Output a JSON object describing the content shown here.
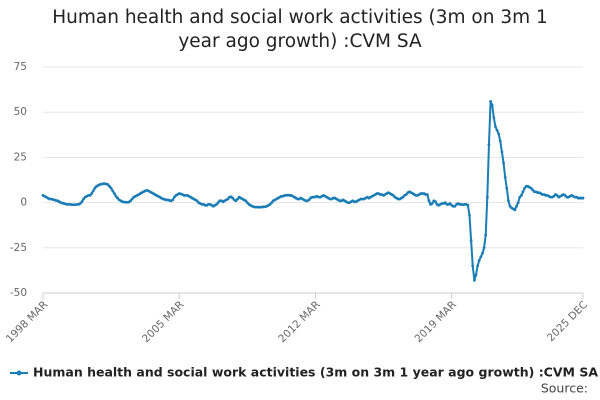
{
  "chart_data": {
    "type": "line",
    "title": "Human health and social work activities (3m on 3m 1 year ago growth) :CVM SA",
    "source": "Source:",
    "categories": [
      "1998 MAR",
      null,
      null,
      null,
      null,
      null,
      null,
      null,
      null,
      null,
      null,
      null,
      null,
      null,
      null,
      null,
      null,
      null,
      null,
      null,
      null,
      null,
      null,
      null,
      null,
      null,
      null,
      null,
      null,
      null,
      null,
      null,
      null,
      null,
      null,
      null,
      null,
      null,
      null,
      null,
      null,
      null,
      null,
      null,
      null,
      null,
      null,
      null,
      null,
      null,
      null,
      null,
      null,
      null,
      null,
      null,
      null,
      null,
      null,
      null,
      null,
      null,
      null,
      null,
      null,
      null,
      null,
      null,
      null,
      null,
      null,
      null,
      null,
      null,
      null,
      null,
      null,
      null,
      null,
      null,
      null,
      null,
      null,
      null,
      "2005 MAR",
      null,
      null,
      null,
      null,
      null,
      null,
      null,
      null,
      null,
      null,
      null,
      null,
      null,
      null,
      null,
      null,
      null,
      null,
      null,
      null,
      null,
      null,
      null,
      null,
      null,
      null,
      null,
      null,
      null,
      null,
      null,
      null,
      null,
      null,
      null,
      null,
      null,
      null,
      null,
      null,
      null,
      null,
      null,
      null,
      null,
      null,
      null,
      null,
      null,
      null,
      null,
      null,
      null,
      null,
      null,
      null,
      null,
      null,
      null,
      null,
      null,
      null,
      null,
      null,
      null,
      null,
      null,
      null,
      null,
      null,
      null,
      null,
      null,
      null,
      null,
      null,
      null,
      null,
      null,
      null,
      null,
      null,
      null,
      "2012 MAR",
      null,
      null,
      null,
      null,
      null,
      null,
      null,
      null,
      null,
      null,
      null,
      null,
      null,
      null,
      null,
      null,
      null,
      null,
      null,
      null,
      null,
      null,
      null,
      null,
      null,
      null,
      null,
      null,
      null,
      null,
      null,
      null,
      null,
      null,
      null,
      null,
      null,
      null,
      null,
      null,
      null,
      null,
      null,
      null,
      null,
      null,
      null,
      null,
      null,
      null,
      null,
      null,
      null,
      null,
      null,
      null,
      null,
      null,
      null,
      null,
      null,
      null,
      null,
      null,
      null,
      null,
      null,
      null,
      null,
      null,
      null,
      null,
      null,
      null,
      null,
      null,
      null,
      null,
      null,
      null,
      null,
      null,
      null,
      "2019 MAR",
      null,
      null,
      null,
      null,
      null,
      null,
      null,
      null,
      null,
      null,
      null,
      null,
      null,
      null,
      null,
      null,
      null,
      null,
      null,
      null,
      null,
      null,
      null,
      null,
      null,
      null,
      null,
      null,
      null,
      null,
      null,
      null,
      null,
      null,
      null,
      null,
      null,
      null,
      null,
      null,
      null,
      null,
      null,
      null,
      null,
      null,
      null,
      null,
      null,
      null,
      null,
      null,
      null,
      null,
      null,
      null,
      null,
      null,
      null,
      null,
      null,
      null,
      null,
      null,
      null,
      null,
      null,
      null,
      null,
      null,
      null,
      null,
      null,
      null,
      null,
      null,
      null,
      null,
      null,
      null,
      "2025 DEC"
    ],
    "series": [
      {
        "name": "Human health and social work activities (3m on 3m 1 year ago growth) :CVM SA",
        "color": "#1a7db5",
        "values": [
          4,
          3.5,
          3,
          2.5,
          2,
          2,
          1.8,
          1.5,
          1.2,
          1,
          0.5,
          0,
          -0.3,
          -0.5,
          -0.8,
          -1,
          -1,
          -1,
          -1.2,
          -1.2,
          -1.2,
          -1,
          -1,
          -0.5,
          0.5,
          2,
          3,
          3.5,
          4,
          4,
          5,
          6.5,
          8,
          9,
          9.5,
          10,
          10.2,
          10.4,
          10.5,
          10.3,
          10,
          9,
          8,
          6.5,
          5,
          3.5,
          2.5,
          1.5,
          1,
          0.5,
          0.3,
          0.2,
          0.2,
          0.3,
          1,
          2,
          3,
          3.5,
          4,
          4.5,
          5,
          5.5,
          6,
          6.5,
          6.8,
          6.5,
          6,
          5.5,
          5,
          4.5,
          4,
          3.5,
          3,
          2.5,
          2,
          1.8,
          1.5,
          1.5,
          1.2,
          1,
          1.5,
          3,
          4,
          4.5,
          5,
          4.8,
          4.5,
          4,
          4,
          4,
          3.5,
          3,
          2.5,
          2,
          1.5,
          1,
          0,
          -0.5,
          -1,
          -1,
          -1.5,
          -1.5,
          -1,
          -1,
          -1.5,
          -2,
          -1.5,
          -1,
          0,
          1,
          1,
          0.5,
          1,
          1.5,
          2,
          3,
          3.2,
          2.5,
          1.5,
          1,
          2,
          3,
          2.5,
          2,
          1.5,
          1,
          0,
          -1,
          -1.5,
          -2,
          -2.3,
          -2.5,
          -2.5,
          -2.5,
          -2.5,
          -2.5,
          -2.3,
          -2.3,
          -2,
          -1.5,
          -1,
          0,
          1,
          1.5,
          2,
          2.5,
          3,
          3.5,
          3.5,
          4,
          4,
          4.2,
          4,
          4,
          3.5,
          3,
          2.5,
          2,
          2,
          2.5,
          2,
          1.5,
          1,
          1,
          1.5,
          2.5,
          3,
          3,
          3.2,
          3.5,
          3,
          3,
          3.5,
          4,
          3.5,
          3,
          2.5,
          2,
          2,
          2.5,
          2.5,
          2,
          1.5,
          1,
          1,
          1.5,
          1,
          0.5,
          0,
          0,
          0.5,
          1,
          0.5,
          0.5,
          1,
          1.5,
          2,
          2,
          2,
          2.5,
          3,
          2.5,
          3,
          3.5,
          4,
          4.5,
          5,
          5,
          4.5,
          4.5,
          4,
          4.5,
          5,
          5.5,
          5,
          4.5,
          4,
          3,
          2.5,
          2,
          2,
          2.5,
          3,
          4,
          4.5,
          5.5,
          6,
          5.5,
          5,
          4.5,
          4,
          4,
          4.5,
          5,
          5,
          5,
          4.5,
          4.5,
          1,
          -1,
          -0.5,
          1,
          0.5,
          -1,
          -1.5,
          -1,
          -0.5,
          -0.5,
          0,
          -1,
          -1,
          -0.5,
          -1.5,
          -2,
          -2,
          -1,
          -0.5,
          -1,
          -1,
          -1.2,
          -1,
          -1,
          -1.5,
          -7,
          -21,
          -35,
          -43,
          -40,
          -35,
          -32,
          -30,
          -28,
          -25,
          -18,
          3,
          32,
          56,
          54,
          47,
          42,
          40,
          38,
          34,
          28,
          22,
          14,
          8,
          1,
          -2,
          -3,
          -3.5,
          -4,
          -2,
          0,
          3,
          4,
          6,
          8,
          9,
          9,
          8.5,
          8,
          7,
          6,
          6,
          5.5,
          5.5,
          5,
          4.5,
          4.5,
          4,
          4,
          3.5,
          3,
          3,
          3.5,
          4.5,
          4,
          3,
          3.5,
          4,
          4.5,
          4,
          3,
          3,
          3.5,
          4,
          3.5,
          3,
          3,
          2.5,
          2.5,
          2.5,
          2.5
        ]
      }
    ],
    "ylim": [
      -50,
      75
    ],
    "yticks": [
      -50,
      -25,
      0,
      25,
      50,
      75
    ],
    "grid": true,
    "legend": "bottom"
  }
}
